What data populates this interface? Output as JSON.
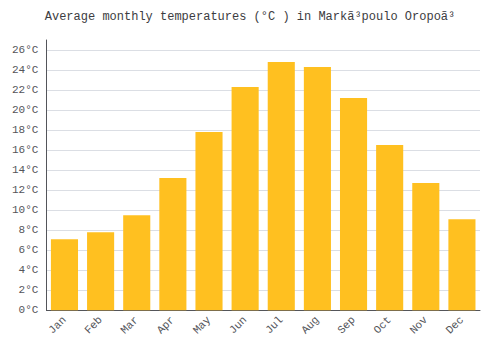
{
  "chart_data": {
    "type": "bar",
    "title": "Average monthly temperatures (°C ) in Markã³poulo Oropoã³",
    "categories": [
      "Jan",
      "Feb",
      "Mar",
      "Apr",
      "May",
      "Jun",
      "Jul",
      "Aug",
      "Sep",
      "Oct",
      "Nov",
      "Dec"
    ],
    "values": [
      7.1,
      7.8,
      9.5,
      13.2,
      17.8,
      22.3,
      24.8,
      24.3,
      21.2,
      16.5,
      12.7,
      9.1
    ],
    "color": "#FFC020",
    "ylim": [
      0,
      27
    ],
    "yticks": [
      {
        "value": 0,
        "label": "0°C"
      },
      {
        "value": 2,
        "label": "2°C"
      },
      {
        "value": 4,
        "label": "4°C"
      },
      {
        "value": 6,
        "label": "6°C"
      },
      {
        "value": 8,
        "label": "8°C"
      },
      {
        "value": 10,
        "label": "10°C"
      },
      {
        "value": 12,
        "label": "12°C"
      },
      {
        "value": 14,
        "label": "14°C"
      },
      {
        "value": 16,
        "label": "16°C"
      },
      {
        "value": 18,
        "label": "18°C"
      },
      {
        "value": 20,
        "label": "20°C"
      },
      {
        "value": 22,
        "label": "22°C"
      },
      {
        "value": 24,
        "label": "24°C"
      },
      {
        "value": 26,
        "label": "26°C"
      }
    ],
    "grid": true
  }
}
